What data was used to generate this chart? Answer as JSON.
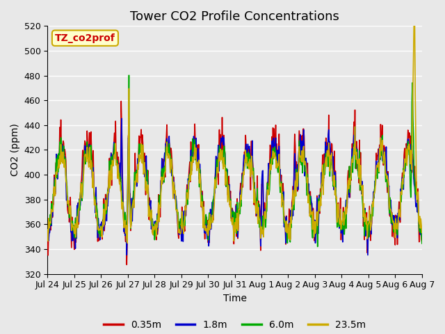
{
  "title": "Tower CO2 Profile Concentrations",
  "xlabel": "Time",
  "ylabel": "CO2 (ppm)",
  "ylim": [
    320,
    520
  ],
  "yticks": [
    320,
    340,
    360,
    380,
    400,
    420,
    440,
    460,
    480,
    500,
    520
  ],
  "xtick_labels": [
    "Jul 24",
    "Jul 25",
    "Jul 26",
    "Jul 27",
    "Jul 28",
    "Jul 29",
    "Jul 30",
    "Jul 31",
    "Aug 1",
    "Aug 2",
    "Aug 3",
    "Aug 4",
    "Aug 5",
    "Aug 6",
    "Aug 7"
  ],
  "legend_labels": [
    "0.35m",
    "1.8m",
    "6.0m",
    "23.5m"
  ],
  "colors": [
    "#cc0000",
    "#0000cc",
    "#00aa00",
    "#ccaa00"
  ],
  "annotation_text": "TZ_co2prof",
  "annotation_color": "#cc0000",
  "annotation_bbox_facecolor": "#ffffcc",
  "annotation_bbox_edgecolor": "#ccaa00",
  "bg_color": "#e8e8e8",
  "grid_color": "#ffffff",
  "title_fontsize": 13,
  "label_fontsize": 10,
  "tick_fontsize": 9
}
